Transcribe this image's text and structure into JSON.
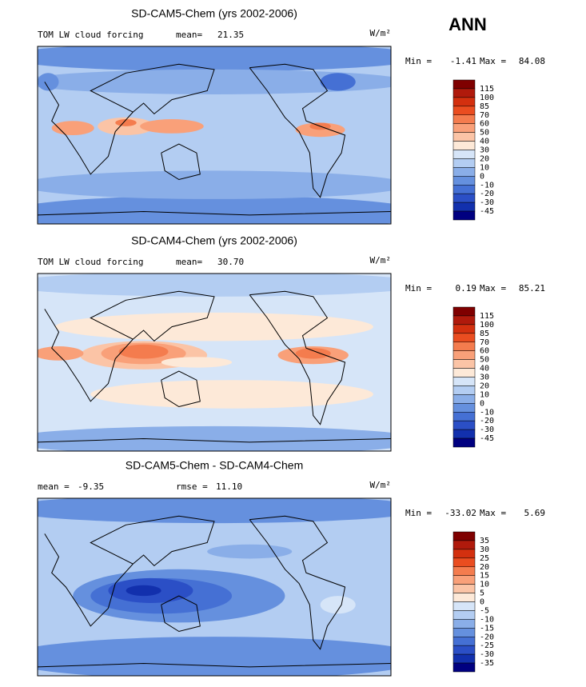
{
  "header": {
    "season": "ANN"
  },
  "palette": [
    "#7f0000",
    "#b01a0c",
    "#d3300f",
    "#ea4d20",
    "#f47c4e",
    "#f9a079",
    "#fbc4a6",
    "#fde9d8",
    "#d6e5f8",
    "#b3cdf2",
    "#8aaee8",
    "#6590de",
    "#4570d4",
    "#2b4fc6",
    "#1230ad",
    "#000080"
  ],
  "panels": [
    {
      "title": "SD-CAM5-Chem (yrs 2002-2006)",
      "field": "TOM LW cloud forcing",
      "mean_label": "mean=",
      "mean": "21.35",
      "units": "W/m²",
      "min_label": "Min =",
      "min": "-1.41",
      "max_label": "Max =",
      "max": "84.08",
      "levels": [
        "115",
        "100",
        "85",
        "70",
        "60",
        "50",
        "40",
        "30",
        "20",
        "10",
        "0",
        "-10",
        "-20",
        "-30",
        "-45"
      ]
    },
    {
      "title": "SD-CAM4-Chem (yrs 2002-2006)",
      "field": "TOM LW cloud forcing",
      "mean_label": "mean=",
      "mean": "30.70",
      "units": "W/m²",
      "min_label": "Min =",
      "min": "0.19",
      "max_label": "Max =",
      "max": "85.21",
      "levels": [
        "115",
        "100",
        "85",
        "70",
        "60",
        "50",
        "40",
        "30",
        "20",
        "10",
        "0",
        "-10",
        "-20",
        "-30",
        "-45"
      ]
    },
    {
      "title": "SD-CAM5-Chem - SD-CAM4-Chem",
      "mean_label": "mean =",
      "mean": "-9.35",
      "rmse_label": "rmse =",
      "rmse": "11.10",
      "units": "W/m²",
      "min_label": "Min =",
      "min": "-33.02",
      "max_label": "Max =",
      "max": "5.69",
      "levels": [
        "35",
        "30",
        "25",
        "20",
        "15",
        "10",
        "5",
        "0",
        "-5",
        "-10",
        "-15",
        "-20",
        "-25",
        "-30",
        "-35"
      ]
    }
  ]
}
